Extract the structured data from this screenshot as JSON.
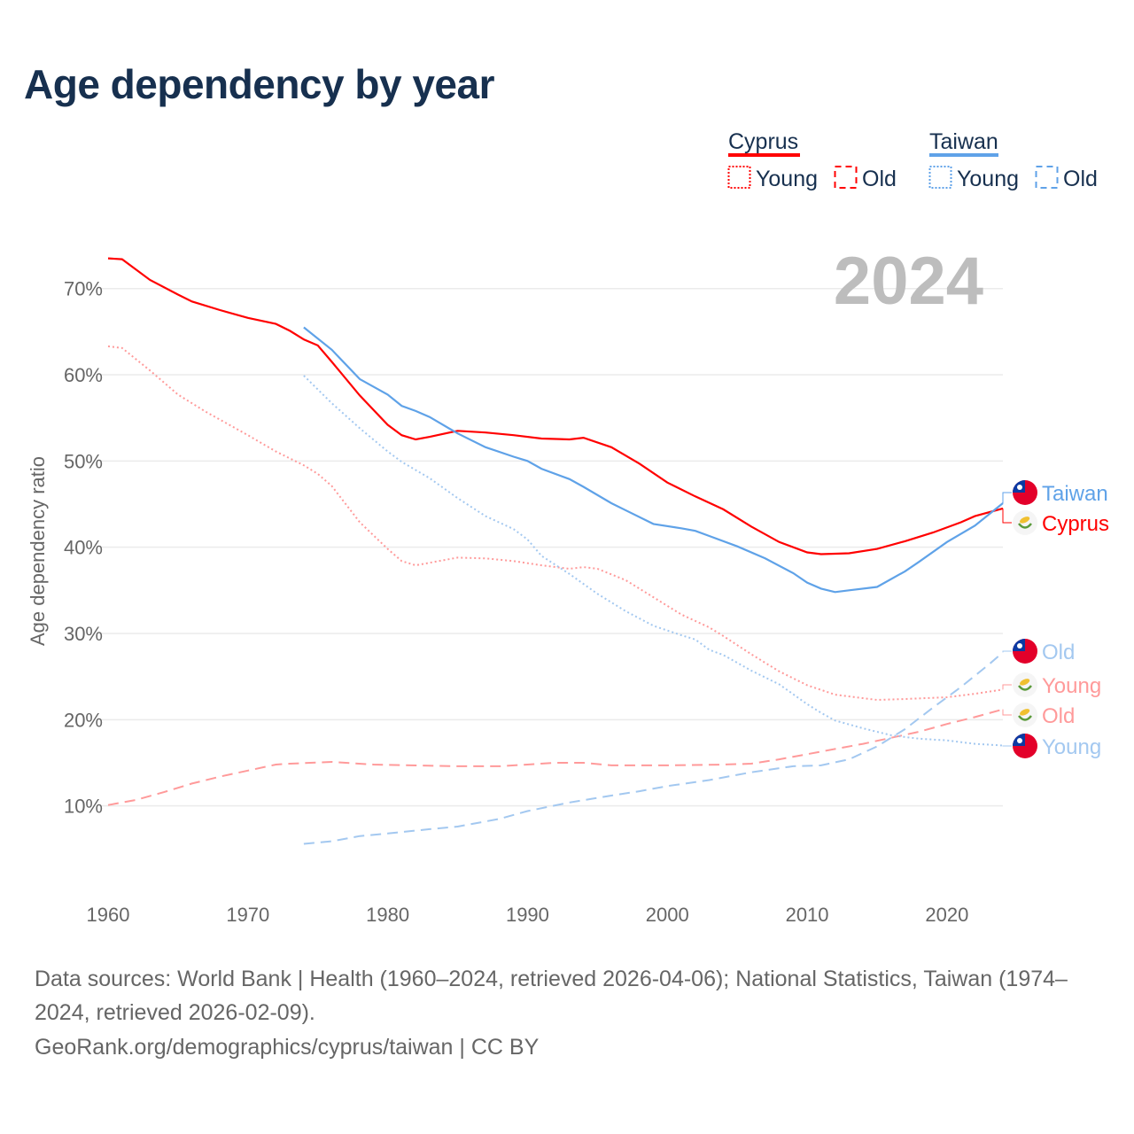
{
  "chart_data": {
    "type": "line",
    "title": "Age dependency by year",
    "year_label": "2024",
    "xlabel": "",
    "ylabel": "Age dependency ratio",
    "xlim": [
      1960,
      2024
    ],
    "ylim": [
      0,
      75
    ],
    "x_ticks": [
      1960,
      1970,
      1980,
      1990,
      2000,
      2010,
      2020
    ],
    "y_ticks": [
      10,
      20,
      30,
      40,
      50,
      60,
      70
    ],
    "y_tick_suffix": "%",
    "grid": true,
    "legend": {
      "placement": "top-right",
      "groups": [
        {
          "name": "Cyprus",
          "color": "#ff0000",
          "items": [
            "Young",
            "Old"
          ]
        },
        {
          "name": "Taiwan",
          "color": "#5fa2e8",
          "items": [
            "Young",
            "Old"
          ]
        }
      ]
    },
    "series": [
      {
        "name": "Cyprus",
        "country": "Cyprus",
        "kind": "total",
        "label": "Cyprus",
        "color": "#ff0000",
        "dash": "solid",
        "x": [
          1960,
          1961,
          1963,
          1965,
          1966,
          1968,
          1970,
          1972,
          1973,
          1974,
          1975,
          1976,
          1978,
          1980,
          1981,
          1982,
          1983,
          1985,
          1987,
          1989,
          1991,
          1993,
          1994,
          1996,
          1998,
          2000,
          2002,
          2004,
          2006,
          2008,
          2010,
          2011,
          2013,
          2015,
          2017,
          2019,
          2021,
          2022,
          2024
        ],
        "y": [
          73.5,
          73.4,
          71.0,
          69.3,
          68.5,
          67.5,
          66.6,
          65.9,
          65.1,
          64.1,
          63.4,
          61.5,
          57.6,
          54.2,
          53.0,
          52.5,
          52.8,
          53.5,
          53.3,
          53.0,
          52.6,
          52.5,
          52.7,
          51.6,
          49.7,
          47.5,
          45.9,
          44.4,
          42.4,
          40.6,
          39.4,
          39.2,
          39.3,
          39.8,
          40.7,
          41.7,
          42.9,
          43.6,
          44.5
        ]
      },
      {
        "name": "Taiwan",
        "country": "Taiwan",
        "kind": "total",
        "label": "Taiwan",
        "color": "#5fa2e8",
        "dash": "solid",
        "x": [
          1974,
          1976,
          1978,
          1980,
          1981,
          1982,
          1983,
          1985,
          1987,
          1989,
          1990,
          1991,
          1993,
          1994,
          1996,
          1997,
          1999,
          2001,
          2002,
          2003,
          2005,
          2007,
          2009,
          2010,
          2011,
          2012,
          2013,
          2015,
          2017,
          2018,
          2020,
          2022,
          2024
        ],
        "y": [
          65.5,
          62.9,
          59.5,
          57.7,
          56.4,
          55.8,
          55.1,
          53.2,
          51.6,
          50.5,
          50.0,
          49.1,
          47.9,
          47.0,
          45.1,
          44.3,
          42.7,
          42.2,
          41.9,
          41.3,
          40.1,
          38.7,
          37.0,
          35.9,
          35.2,
          34.8,
          35.0,
          35.4,
          37.2,
          38.3,
          40.6,
          42.5,
          45.1
        ]
      },
      {
        "name": "Cyprus Young",
        "country": "Cyprus",
        "kind": "young",
        "label": "Young",
        "color": "#ff9a9a",
        "dash": "dotted",
        "x": [
          1960,
          1961,
          1963,
          1965,
          1967,
          1970,
          1972,
          1974,
          1975,
          1976,
          1978,
          1980,
          1981,
          1982,
          1983,
          1985,
          1987,
          1989,
          1991,
          1993,
          1994,
          1995,
          1997,
          1999,
          2001,
          2003,
          2004,
          2006,
          2008,
          2010,
          2012,
          2015,
          2017,
          2020,
          2022,
          2024
        ],
        "y": [
          63.3,
          63.1,
          60.5,
          57.7,
          55.7,
          53.0,
          51.1,
          49.5,
          48.5,
          47.1,
          42.9,
          39.8,
          38.4,
          37.9,
          38.2,
          38.8,
          38.7,
          38.4,
          37.9,
          37.5,
          37.7,
          37.5,
          36.2,
          34.2,
          32.2,
          30.7,
          29.7,
          27.6,
          25.6,
          24.0,
          22.9,
          22.3,
          22.4,
          22.6,
          23.0,
          23.5
        ]
      },
      {
        "name": "Cyprus Old",
        "country": "Cyprus",
        "kind": "old",
        "label": "Old",
        "color": "#ff9a9a",
        "dash": "dashed",
        "x": [
          1960,
          1962,
          1964,
          1966,
          1968,
          1970,
          1972,
          1973,
          1976,
          1979,
          1985,
          1988,
          1992,
          1994,
          1996,
          2000,
          2004,
          2006,
          2008,
          2010,
          2012,
          2014,
          2016,
          2018,
          2020,
          2022,
          2024
        ],
        "y": [
          10.1,
          10.7,
          11.6,
          12.6,
          13.4,
          14.1,
          14.8,
          14.9,
          15.1,
          14.8,
          14.6,
          14.6,
          15.0,
          15.0,
          14.7,
          14.7,
          14.8,
          14.9,
          15.4,
          16.0,
          16.6,
          17.2,
          17.9,
          18.6,
          19.5,
          20.3,
          21.2
        ]
      },
      {
        "name": "Taiwan Young",
        "country": "Taiwan",
        "kind": "young",
        "label": "Young",
        "color": "#a3c8f0",
        "dash": "dotted",
        "x": [
          1974,
          1976,
          1978,
          1980,
          1981,
          1983,
          1985,
          1987,
          1989,
          1990,
          1991,
          1993,
          1995,
          1997,
          1999,
          2001,
          2002,
          2003,
          2004,
          2006,
          2008,
          2010,
          2011,
          2012,
          2014,
          2016,
          2018,
          2020,
          2022,
          2024
        ],
        "y": [
          59.9,
          56.7,
          53.8,
          51.1,
          49.9,
          48.0,
          45.7,
          43.6,
          42.1,
          40.9,
          39.0,
          36.9,
          34.6,
          32.6,
          30.9,
          29.8,
          29.3,
          28.1,
          27.5,
          25.7,
          24.1,
          21.8,
          20.8,
          19.9,
          19.0,
          18.2,
          17.8,
          17.6,
          17.2,
          17.0
        ]
      },
      {
        "name": "Taiwan Old",
        "country": "Taiwan",
        "kind": "old",
        "label": "Old",
        "color": "#a3c8f0",
        "dash": "dashed",
        "x": [
          1974,
          1976,
          1978,
          1980,
          1983,
          1985,
          1988,
          1990,
          1993,
          1996,
          1998,
          2000,
          2003,
          2006,
          2009,
          2011,
          2013,
          2015,
          2017,
          2019,
          2021,
          2023,
          2024
        ],
        "y": [
          5.6,
          5.9,
          6.5,
          6.8,
          7.3,
          7.6,
          8.5,
          9.4,
          10.4,
          11.2,
          11.7,
          12.3,
          13.0,
          13.9,
          14.6,
          14.7,
          15.4,
          16.9,
          18.9,
          21.4,
          23.8,
          26.4,
          27.8
        ]
      }
    ]
  },
  "sources": {
    "line1": "Data sources: World Bank | Health (1960–2024, retrieved 2026-04-06); National Statistics, Taiwan (1974–",
    "line2": "2024, retrieved 2026-02-09).",
    "line3": "GeoRank.org/demographics/cyprus/taiwan | CC BY"
  }
}
